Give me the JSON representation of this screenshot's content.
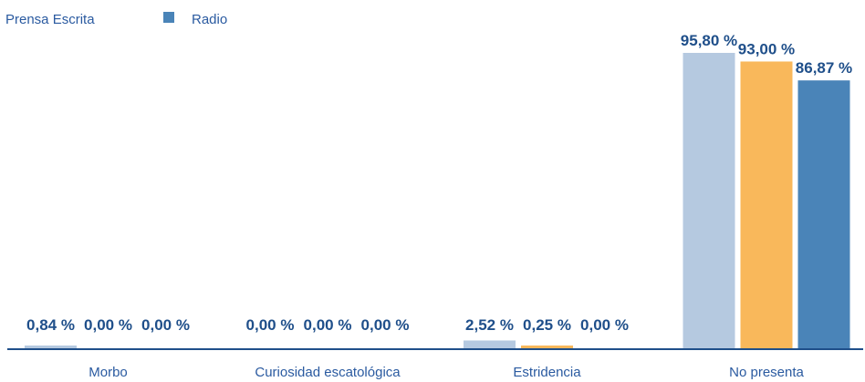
{
  "chart_data": {
    "type": "bar",
    "categories": [
      "Morbo",
      "Curiosidad escatológica",
      "Estridencia",
      "No presenta"
    ],
    "series": [
      {
        "name": "Prensa Escrita",
        "color": "#b5c9e0",
        "values": [
          0.84,
          0.0,
          2.52,
          95.8
        ],
        "labels": [
          "0,84 %",
          "0,00 %",
          "2,52 %",
          "95,80 %"
        ]
      },
      {
        "name": "",
        "color": "#f9b85b",
        "values": [
          0.0,
          0.0,
          0.25,
          93.0
        ],
        "labels": [
          "0,00 %",
          "0,00 %",
          "0,25 %",
          "93,00 %"
        ]
      },
      {
        "name": "Radio",
        "color": "#4a84b8",
        "values": [
          0.0,
          0.0,
          0.0,
          86.87
        ],
        "labels": [
          "0,00 %",
          "0,00 %",
          "0,00 %",
          "86,87 %"
        ]
      }
    ],
    "ylim": [
      0,
      100
    ],
    "grid": false,
    "legend": "top-left",
    "axis_color": "#1f4f8a"
  }
}
